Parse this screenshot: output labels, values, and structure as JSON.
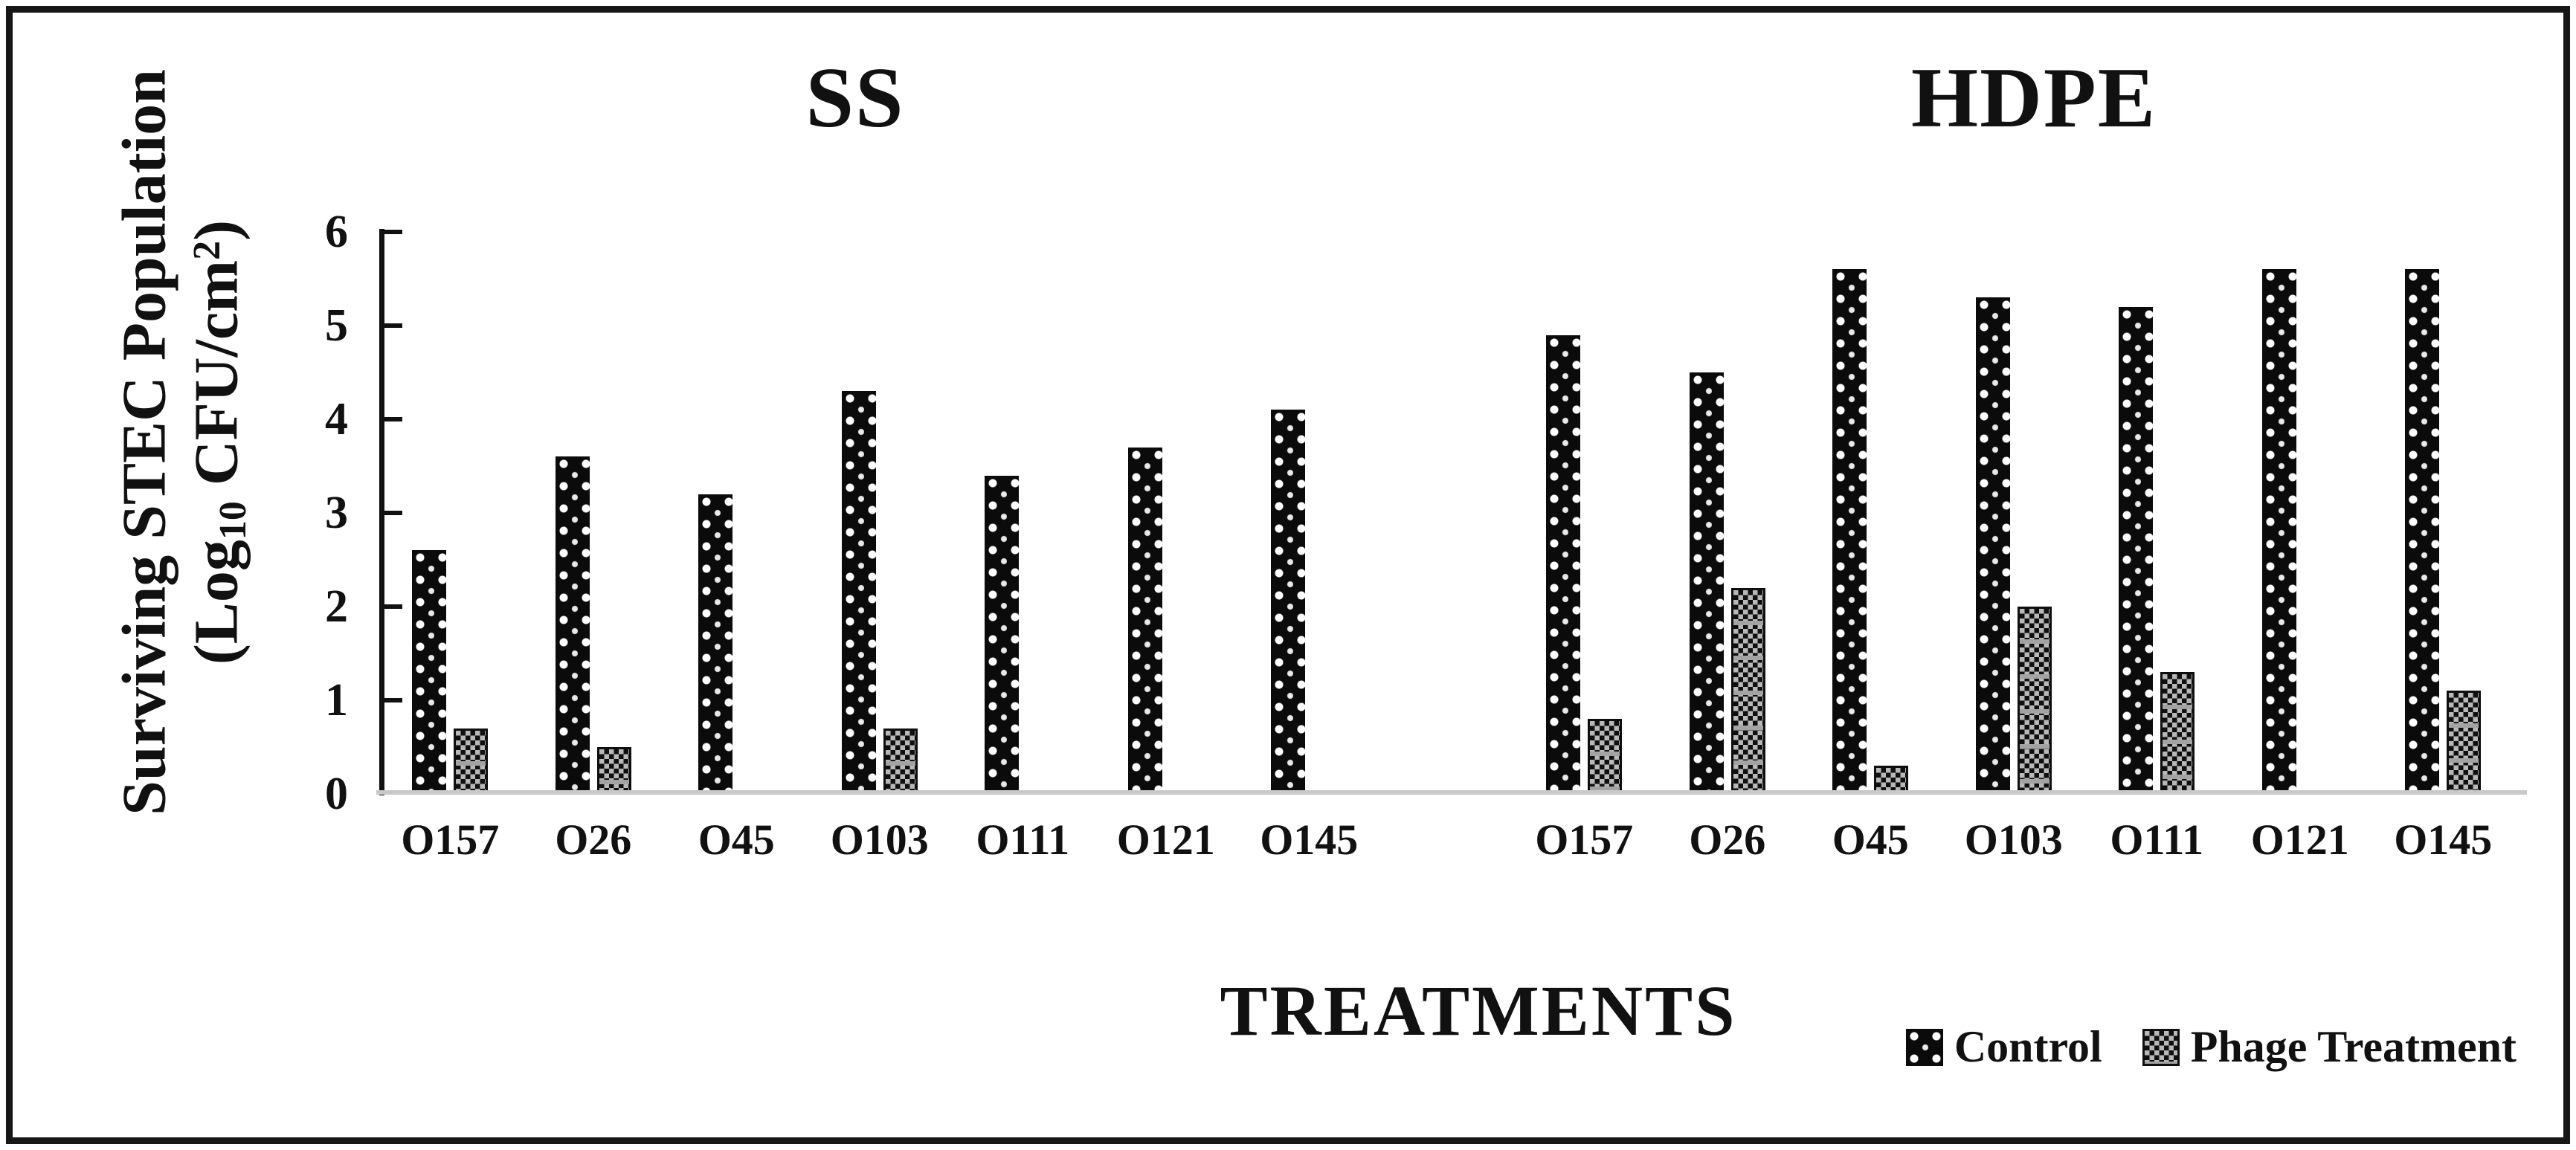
{
  "frame": {
    "border_color": "#161616",
    "background": "#ffffff"
  },
  "chart_data": {
    "type": "bar",
    "title": "",
    "y_axis": {
      "label_line1": "Surviving STEC Population",
      "label_parts": {
        "prefix": "(Log",
        "sub": "10",
        "mid": " CFU/cm",
        "sup": "2",
        "suffix": ")"
      },
      "ticks": [
        "0",
        "1",
        "2",
        "3",
        "4",
        "5",
        "6"
      ],
      "ylim": [
        0,
        6
      ],
      "grid": "off",
      "tick_style": "inside"
    },
    "x_axis": {
      "label": "TREATMENTS"
    },
    "groups": [
      {
        "title": "SS",
        "categories": [
          "O157",
          "O26",
          "O45",
          "O103",
          "O111",
          "O121",
          "O145"
        ],
        "series": [
          {
            "name": "Control",
            "pattern": "dots",
            "values": [
              2.6,
              3.6,
              3.2,
              4.3,
              3.4,
              3.7,
              4.1
            ]
          },
          {
            "name": "Phage Treatment",
            "pattern": "checker",
            "values": [
              0.7,
              0.5,
              0,
              0.7,
              0,
              0,
              0
            ]
          }
        ]
      },
      {
        "title": "HDPE",
        "categories": [
          "O157",
          "O26",
          "O45",
          "O103",
          "O111",
          "O121",
          "O145"
        ],
        "series": [
          {
            "name": "Control",
            "pattern": "dots",
            "values": [
              4.9,
              4.5,
              5.6,
              5.3,
              5.2,
              5.6,
              5.6
            ]
          },
          {
            "name": "Phage Treatment",
            "pattern": "checker",
            "values": [
              0.8,
              2.2,
              0.3,
              2.0,
              1.3,
              0,
              1.1
            ]
          }
        ]
      }
    ],
    "legend": [
      {
        "label": "Control",
        "pattern": "dots"
      },
      {
        "label": "Phage Treatment",
        "pattern": "checker"
      }
    ],
    "legend_position": "bottom-right",
    "colors": {
      "bar_black": "#0b0b0b",
      "checker_gray": "#b8b8b8",
      "baseline_gray": "#c9c9c9",
      "text": "#111111"
    }
  }
}
